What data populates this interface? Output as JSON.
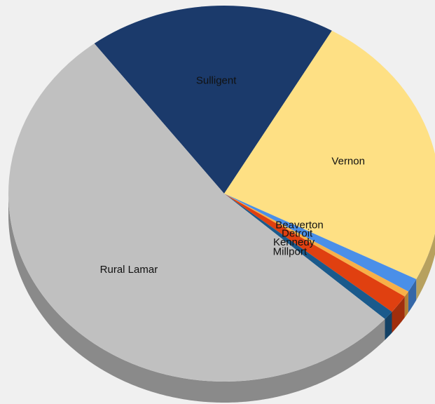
{
  "chart_data": {
    "type": "pie",
    "three_d": true,
    "categories": [
      "Sulligent",
      "Vernon",
      "Beaverton",
      "Detroit",
      "Kennedy",
      "Millport",
      "Rural Lamar"
    ],
    "values": [
      18.6,
      24.2,
      1.2,
      0.5,
      1.6,
      0.8,
      53.1
    ],
    "colors": [
      "#1b3a6b",
      "#fee084",
      "#4a8fe8",
      "#f8b048",
      "#e04010",
      "#1a5a8c",
      "#c0c0c0"
    ]
  }
}
